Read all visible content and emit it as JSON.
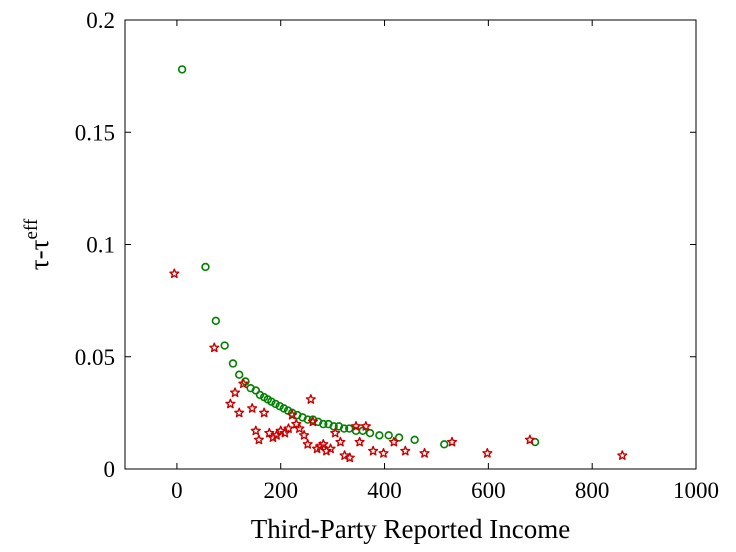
{
  "chart_data": {
    "type": "scatter",
    "xlabel": "Third-Party Reported Income",
    "ylabel": {
      "base": "τ-τ",
      "superscript": "eff"
    },
    "xlim": [
      -100,
      1000
    ],
    "ylim": [
      0,
      0.2
    ],
    "xticks": [
      "0",
      "200",
      "400",
      "600",
      "800",
      "1000"
    ],
    "yticks": [
      "0",
      "0.05",
      "0.1",
      "0.15",
      "0.2"
    ],
    "grid": false,
    "legend": "none",
    "series": [
      {
        "marker": "circle",
        "color": "#008000",
        "points": [
          [
            10,
            0.178
          ],
          [
            55,
            0.09
          ],
          [
            75,
            0.066
          ],
          [
            92,
            0.055
          ],
          [
            108,
            0.047
          ],
          [
            120,
            0.042
          ],
          [
            132,
            0.039
          ],
          [
            142,
            0.036
          ],
          [
            152,
            0.035
          ],
          [
            160,
            0.033
          ],
          [
            168,
            0.032
          ],
          [
            175,
            0.031
          ],
          [
            182,
            0.03
          ],
          [
            190,
            0.029
          ],
          [
            198,
            0.028
          ],
          [
            206,
            0.027
          ],
          [
            214,
            0.026
          ],
          [
            222,
            0.025
          ],
          [
            232,
            0.024
          ],
          [
            242,
            0.023
          ],
          [
            252,
            0.022
          ],
          [
            262,
            0.022
          ],
          [
            272,
            0.021
          ],
          [
            282,
            0.02
          ],
          [
            292,
            0.02
          ],
          [
            302,
            0.019
          ],
          [
            312,
            0.019
          ],
          [
            322,
            0.018
          ],
          [
            332,
            0.018
          ],
          [
            345,
            0.017
          ],
          [
            358,
            0.017
          ],
          [
            372,
            0.016
          ],
          [
            390,
            0.015
          ],
          [
            408,
            0.015
          ],
          [
            428,
            0.014
          ],
          [
            458,
            0.013
          ],
          [
            515,
            0.011
          ],
          [
            690,
            0.012
          ]
        ]
      },
      {
        "marker": "star",
        "color": "#cc0000",
        "points": [
          [
            -5,
            0.087
          ],
          [
            72,
            0.054
          ],
          [
            112,
            0.034
          ],
          [
            103,
            0.029
          ],
          [
            128,
            0.038
          ],
          [
            120,
            0.025
          ],
          [
            145,
            0.027
          ],
          [
            152,
            0.017
          ],
          [
            158,
            0.013
          ],
          [
            168,
            0.025
          ],
          [
            178,
            0.016
          ],
          [
            185,
            0.014
          ],
          [
            192,
            0.015
          ],
          [
            200,
            0.017
          ],
          [
            208,
            0.016
          ],
          [
            215,
            0.018
          ],
          [
            222,
            0.024
          ],
          [
            230,
            0.02
          ],
          [
            236,
            0.018
          ],
          [
            245,
            0.015
          ],
          [
            252,
            0.011
          ],
          [
            262,
            0.021
          ],
          [
            258,
            0.031
          ],
          [
            270,
            0.009
          ],
          [
            276,
            0.01
          ],
          [
            282,
            0.011
          ],
          [
            288,
            0.008
          ],
          [
            296,
            0.009
          ],
          [
            305,
            0.016
          ],
          [
            315,
            0.012
          ],
          [
            323,
            0.006
          ],
          [
            333,
            0.005
          ],
          [
            345,
            0.019
          ],
          [
            352,
            0.012
          ],
          [
            364,
            0.019
          ],
          [
            378,
            0.008
          ],
          [
            398,
            0.007
          ],
          [
            418,
            0.012
          ],
          [
            440,
            0.008
          ],
          [
            477,
            0.007
          ],
          [
            530,
            0.012
          ],
          [
            598,
            0.007
          ],
          [
            680,
            0.013
          ],
          [
            858,
            0.006
          ]
        ]
      }
    ]
  }
}
